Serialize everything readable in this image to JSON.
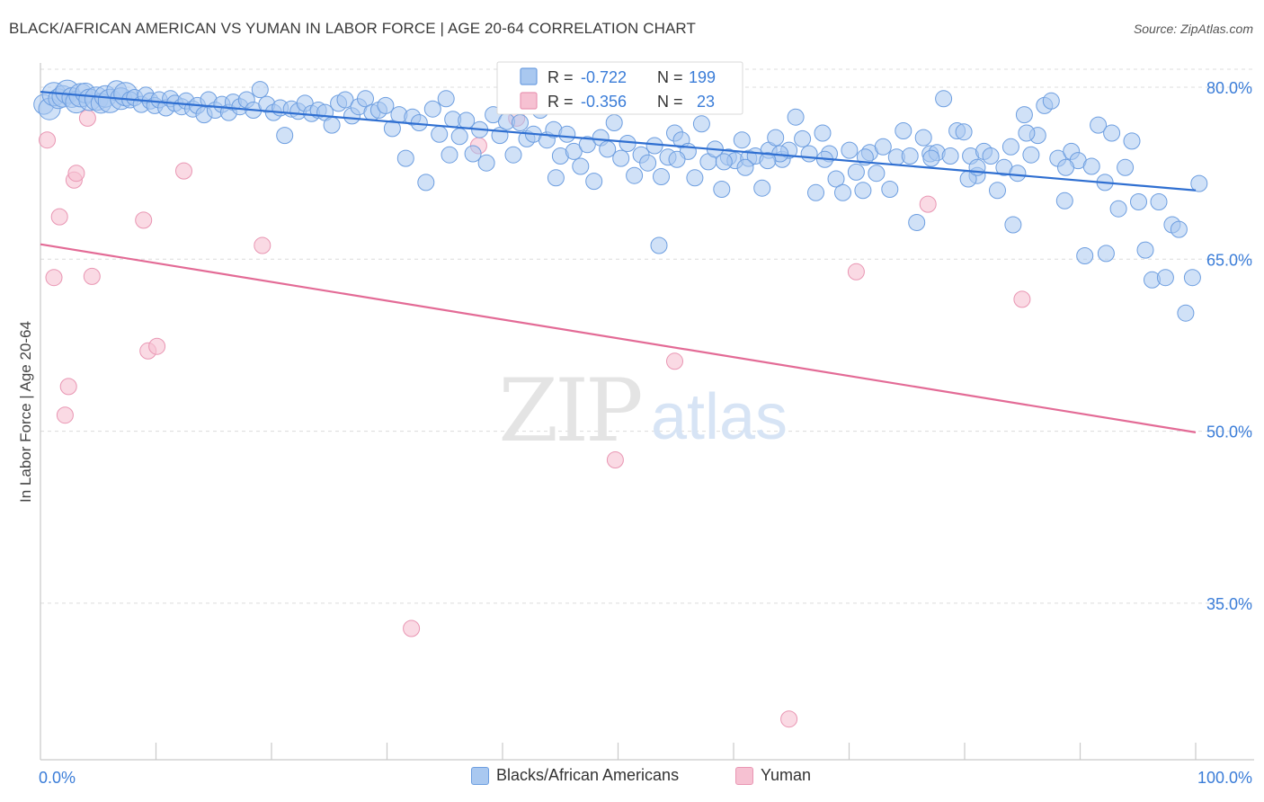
{
  "title": "BLACK/AFRICAN AMERICAN VS YUMAN IN LABOR FORCE | AGE 20-64 CORRELATION CHART",
  "source": "Source: ZipAtlas.com",
  "watermark": {
    "zip": "ZIP",
    "atlas": "atlas"
  },
  "colors": {
    "blue_fill": "#a9c8f0",
    "blue_stroke": "#6d9ee0",
    "blue_line": "#2f6fd1",
    "blue_text": "#3b7dd8",
    "pink_fill": "#f6c1d2",
    "pink_stroke": "#e996b3",
    "pink_line": "#e36b96",
    "grid": "#dcdcdc",
    "axis": "#c9c9c9"
  },
  "stats_legend": {
    "r_label": "R = ",
    "n_label": "N = ",
    "rows": [
      {
        "series": "blue",
        "r": "-0.722",
        "n": "199"
      },
      {
        "series": "pink",
        "r": "-0.356",
        "n": "23"
      }
    ]
  },
  "chart_data": {
    "type": "scatter",
    "title": "BLACK/AFRICAN AMERICAN VS YUMAN IN LABOR FORCE | AGE 20-64 CORRELATION CHART",
    "xlabel": "",
    "ylabel": "In Labor Force | Age 20-64",
    "xlim": [
      0,
      100
    ],
    "ylim": [
      20,
      82
    ],
    "x_tick_labels": [
      {
        "value": 0,
        "label": "0.0%"
      },
      {
        "value": 100,
        "label": "100.0%"
      }
    ],
    "x_minor_ticks": [
      10,
      20,
      30,
      40,
      50,
      60,
      70,
      80,
      90,
      100
    ],
    "y_ticks": [
      {
        "value": 80,
        "label": "80.0%"
      },
      {
        "value": 65,
        "label": "65.0%"
      },
      {
        "value": 50,
        "label": "50.0%"
      },
      {
        "value": 35,
        "label": "35.0%"
      }
    ],
    "grid": true,
    "legend_position": "bottom-center",
    "series": [
      {
        "name": "Blacks/African Americans",
        "color": "blue",
        "r": -0.722,
        "n": 199,
        "trend": {
          "x": [
            0,
            100
          ],
          "y": [
            79.6,
            71.0
          ]
        },
        "points": [
          [
            0.3,
            78.5
          ],
          [
            0.8,
            78.1
          ],
          [
            1.2,
            79.4
          ],
          [
            1.6,
            79.0
          ],
          [
            2.0,
            79.2
          ],
          [
            2.4,
            79.6
          ],
          [
            2.8,
            79.1
          ],
          [
            3.2,
            78.7
          ],
          [
            3.6,
            79.3
          ],
          [
            4.0,
            79.5
          ],
          [
            4.4,
            78.9
          ],
          [
            5.0,
            79.0
          ],
          [
            5.4,
            78.6
          ],
          [
            5.8,
            79.2
          ],
          [
            6.2,
            78.8
          ],
          [
            6.8,
            79.7
          ],
          [
            7.2,
            79.0
          ],
          [
            7.6,
            79.4
          ],
          [
            8.0,
            78.9
          ],
          [
            8.4,
            79.1
          ],
          [
            9.0,
            78.5
          ],
          [
            9.4,
            79.3
          ],
          [
            9.8,
            78.8
          ],
          [
            10.2,
            78.4
          ],
          [
            10.6,
            78.9
          ],
          [
            11.2,
            78.2
          ],
          [
            11.6,
            79.0
          ],
          [
            12.0,
            78.6
          ],
          [
            12.6,
            78.3
          ],
          [
            13.0,
            78.8
          ],
          [
            13.6,
            78.1
          ],
          [
            14.0,
            78.4
          ],
          [
            14.6,
            77.6
          ],
          [
            15.0,
            78.9
          ],
          [
            15.6,
            78.0
          ],
          [
            16.2,
            78.5
          ],
          [
            16.8,
            77.8
          ],
          [
            17.2,
            78.7
          ],
          [
            17.8,
            78.3
          ],
          [
            18.4,
            78.9
          ],
          [
            19.0,
            78.0
          ],
          [
            19.6,
            79.8
          ],
          [
            20.2,
            78.5
          ],
          [
            20.8,
            77.8
          ],
          [
            21.4,
            78.2
          ],
          [
            21.8,
            75.8
          ],
          [
            22.4,
            78.1
          ],
          [
            23.0,
            77.9
          ],
          [
            23.6,
            78.6
          ],
          [
            24.2,
            77.7
          ],
          [
            24.8,
            78.0
          ],
          [
            25.4,
            77.8
          ],
          [
            26.0,
            76.7
          ],
          [
            26.6,
            78.6
          ],
          [
            27.2,
            78.9
          ],
          [
            27.8,
            77.5
          ],
          [
            28.4,
            78.3
          ],
          [
            29.0,
            79.0
          ],
          [
            29.6,
            77.8
          ],
          [
            30.2,
            78.0
          ],
          [
            30.8,
            78.4
          ],
          [
            31.4,
            76.4
          ],
          [
            32.0,
            77.6
          ],
          [
            32.6,
            73.8
          ],
          [
            33.2,
            77.4
          ],
          [
            33.8,
            76.9
          ],
          [
            34.4,
            71.7
          ],
          [
            35.0,
            78.1
          ],
          [
            35.6,
            75.9
          ],
          [
            36.2,
            79.0
          ],
          [
            36.8,
            77.2
          ],
          [
            37.4,
            75.7
          ],
          [
            38.0,
            77.1
          ],
          [
            38.6,
            74.2
          ],
          [
            39.2,
            76.3
          ],
          [
            39.8,
            73.4
          ],
          [
            40.4,
            77.6
          ],
          [
            41.0,
            75.8
          ],
          [
            41.6,
            77.0
          ],
          [
            42.2,
            74.1
          ],
          [
            42.8,
            76.9
          ],
          [
            43.4,
            75.5
          ],
          [
            44.0,
            75.9
          ],
          [
            44.6,
            78.0
          ],
          [
            45.2,
            75.4
          ],
          [
            45.8,
            76.3
          ],
          [
            46.4,
            74.0
          ],
          [
            47.0,
            75.9
          ],
          [
            47.6,
            74.4
          ],
          [
            48.2,
            73.1
          ],
          [
            48.8,
            75.0
          ],
          [
            49.4,
            71.8
          ],
          [
            50.0,
            75.6
          ],
          [
            50.6,
            74.6
          ],
          [
            51.2,
            76.9
          ],
          [
            51.8,
            73.8
          ],
          [
            52.4,
            75.1
          ],
          [
            53.0,
            72.3
          ],
          [
            53.6,
            74.1
          ],
          [
            54.2,
            73.4
          ],
          [
            54.8,
            74.9
          ],
          [
            55.4,
            72.2
          ],
          [
            56.0,
            73.9
          ],
          [
            56.6,
            76.0
          ],
          [
            57.2,
            75.4
          ],
          [
            57.8,
            74.4
          ],
          [
            58.4,
            72.1
          ],
          [
            59.0,
            76.8
          ],
          [
            59.6,
            73.5
          ],
          [
            60.2,
            74.6
          ],
          [
            60.8,
            71.1
          ],
          [
            61.4,
            73.9
          ],
          [
            62.0,
            73.6
          ],
          [
            62.6,
            75.4
          ],
          [
            63.2,
            73.8
          ],
          [
            63.8,
            74.0
          ],
          [
            64.4,
            71.2
          ],
          [
            65.0,
            74.5
          ],
          [
            65.6,
            75.6
          ],
          [
            66.2,
            73.7
          ],
          [
            66.8,
            74.5
          ],
          [
            67.4,
            77.4
          ],
          [
            68.0,
            75.5
          ],
          [
            68.6,
            74.2
          ],
          [
            69.2,
            70.8
          ],
          [
            69.8,
            76.0
          ],
          [
            70.4,
            74.2
          ],
          [
            71.0,
            72.0
          ],
          [
            71.6,
            70.8
          ],
          [
            72.2,
            74.5
          ],
          [
            72.8,
            72.6
          ],
          [
            73.4,
            71.0
          ],
          [
            74.0,
            74.3
          ],
          [
            74.6,
            72.5
          ],
          [
            75.2,
            74.8
          ],
          [
            75.8,
            71.1
          ],
          [
            76.4,
            73.9
          ],
          [
            77.0,
            76.2
          ],
          [
            77.6,
            74.0
          ],
          [
            78.2,
            68.2
          ],
          [
            78.8,
            75.6
          ],
          [
            79.4,
            74.2
          ],
          [
            80.0,
            74.3
          ],
          [
            80.6,
            79.0
          ],
          [
            81.2,
            74.0
          ],
          [
            81.8,
            76.2
          ],
          [
            82.4,
            76.1
          ],
          [
            83.0,
            74.0
          ],
          [
            83.6,
            72.3
          ],
          [
            84.2,
            74.4
          ],
          [
            84.8,
            74.0
          ],
          [
            85.4,
            71.0
          ],
          [
            86.0,
            73.0
          ],
          [
            86.6,
            74.8
          ],
          [
            87.2,
            72.5
          ],
          [
            87.8,
            77.6
          ],
          [
            88.4,
            74.1
          ],
          [
            89.0,
            75.8
          ],
          [
            89.6,
            78.4
          ],
          [
            90.2,
            78.8
          ],
          [
            90.8,
            73.8
          ],
          [
            91.4,
            70.1
          ],
          [
            92.0,
            74.4
          ],
          [
            92.6,
            73.6
          ],
          [
            93.2,
            65.3
          ],
          [
            93.8,
            73.1
          ],
          [
            94.4,
            76.7
          ],
          [
            95.0,
            71.7
          ],
          [
            95.6,
            76.0
          ],
          [
            96.2,
            69.4
          ],
          [
            96.8,
            73.0
          ],
          [
            97.4,
            75.3
          ],
          [
            98.0,
            70.0
          ],
          [
            98.6,
            65.8
          ],
          [
            99.2,
            63.2
          ],
          [
            99.8,
            70.0
          ],
          [
            100.4,
            63.4
          ],
          [
            101.0,
            68.0
          ],
          [
            101.6,
            67.6
          ],
          [
            102.2,
            60.3
          ],
          [
            102.8,
            63.4
          ],
          [
            103.4,
            71.6
          ],
          [
            55.2,
            66.2
          ],
          [
            46.0,
            72.1
          ],
          [
            56.8,
            73.7
          ],
          [
            36.5,
            74.1
          ],
          [
            61.0,
            73.5
          ],
          [
            70.0,
            73.7
          ],
          [
            88.0,
            76.0
          ],
          [
            91.5,
            73.0
          ],
          [
            79.5,
            73.8
          ],
          [
            82.8,
            72.0
          ],
          [
            86.8,
            68.0
          ],
          [
            95.1,
            65.5
          ],
          [
            62.9,
            73.0
          ],
          [
            66.0,
            74.2
          ],
          [
            64.9,
            73.6
          ],
          [
            73.6,
            73.9
          ],
          [
            83.6,
            73.0
          ]
        ]
      },
      {
        "name": "Yuman",
        "color": "pink",
        "r": -0.356,
        "n": 23,
        "trend": {
          "x": [
            0,
            100
          ],
          "y": [
            66.3,
            49.9
          ]
        },
        "points": [
          [
            0.6,
            75.4
          ],
          [
            1.2,
            63.4
          ],
          [
            1.7,
            68.7
          ],
          [
            2.2,
            51.4
          ],
          [
            2.5,
            53.9
          ],
          [
            3.0,
            71.9
          ],
          [
            3.2,
            72.5
          ],
          [
            4.2,
            77.3
          ],
          [
            4.6,
            63.5
          ],
          [
            9.2,
            68.4
          ],
          [
            9.6,
            57.0
          ],
          [
            10.4,
            57.4
          ],
          [
            12.8,
            72.7
          ],
          [
            19.8,
            66.2
          ],
          [
            33.1,
            32.8
          ],
          [
            39.1,
            74.9
          ],
          [
            51.3,
            47.5
          ],
          [
            56.6,
            56.1
          ],
          [
            66.8,
            24.9
          ],
          [
            72.8,
            63.9
          ],
          [
            79.2,
            69.8
          ],
          [
            87.6,
            61.5
          ],
          [
            42.5,
            77.3
          ]
        ]
      }
    ]
  },
  "legend_bottom": [
    {
      "series": "blue",
      "label": "Blacks/African Americans"
    },
    {
      "series": "pink",
      "label": "Yuman"
    }
  ]
}
